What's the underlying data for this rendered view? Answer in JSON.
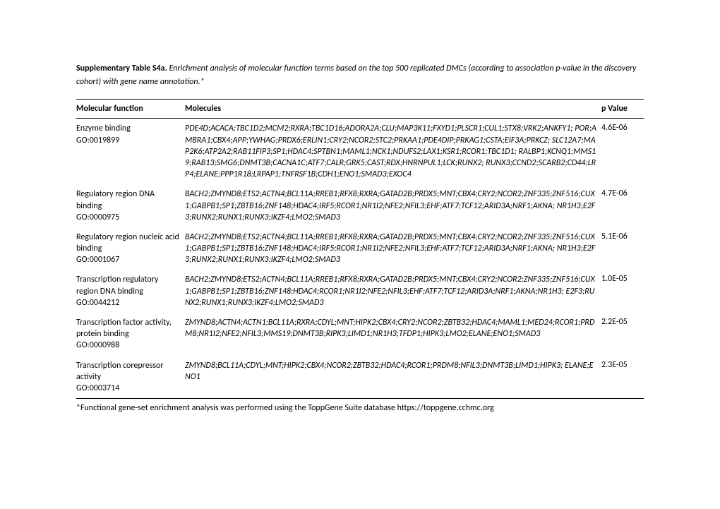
{
  "caption": {
    "title_bold": "Supplementary Table S4a.",
    "title_italic": "Enrichment analysis of molecular function terms based on the top 500 replicated DMCs (according to association p-value in the discovery cohort) with gene name annotation.*"
  },
  "columns": {
    "func": "Molecular function",
    "mol": "Molecules",
    "pval": "p Value"
  },
  "rows": [
    {
      "name": "Enzyme binding",
      "go": "GO:0019899",
      "molecules": "PDE4D;ACACA;TBC1D2;MCM2;RXRA;TBC1D16;ADORA2A;CLU;MAP3K11;FXYD1;PLSCR1;CUL1;STX8;VRK2;ANKFY1; POR;AMBRA1;CBX4;APP;YWHAG;PRDX6;ERLIN1;CRY2;NCOR2;STC2;PRKAA1;PDE4DIP;PRKAG1;CSTA;EIF3A;PRKCZ; SLC12A7;MAP2K6;ATP2A2;RAB11FIP3;SP1;HDAC4;SPTBN1;MAML1;NCK1;NDUFS2;LAX1;KSR1;RCOR1;TBC1D1; RALBP1;KCNQ1;MMS19;RAB13;SMG6;DNMT3B;CACNA1C;ATF7;CALR;GRK5;CAST;RDX;HNRNPUL1;LCK;RUNX2; RUNX3;CCND2;SCARB2;CD44;LRP4;ELANE;PPP1R18;LRPAP1;TNFRSF1B;CDH1;ENO1;SMAD3;EXOC4",
      "pvalue": "4.6E-06"
    },
    {
      "name": "Regulatory region DNA binding",
      "go": "GO:0000975",
      "molecules": "BACH2;ZMYND8;ETS2;ACTN4;BCL11A;RREB1;RFX8;RXRA;GATAD2B;PRDX5;MNT;CBX4;CRY2;NCOR2;ZNF335;ZNF516;CUX1;GABPB1;SP1;ZBTB16;ZNF148;HDAC4;IRF5;RCOR1;NR1I2;NFE2;NFIL3;EHF;ATF7;TCF12;ARID3A;NRF1;AKNA; NR1H3;E2F3;RUNX2;RUNX1;RUNX3;IKZF4;LMO2;SMAD3",
      "pvalue": "4.7E-06"
    },
    {
      "name": "Regulatory region nucleic acid binding",
      "go": "GO:0001067",
      "molecules": "BACH2;ZMYND8;ETS2;ACTN4;BCL11A;RREB1;RFX8;RXRA;GATAD2B;PRDX5;MNT;CBX4;CRY2;NCOR2;ZNF335;ZNF516;CUX1;GABPB1;SP1;ZBTB16;ZNF148;HDAC4;IRF5;RCOR1;NR1I2;NFE2;NFIL3;EHF;ATF7;TCF12;ARID3A;NRF1;AKNA; NR1H3;E2F3;RUNX2;RUNX1;RUNX3;IKZF4;LMO2;SMAD3",
      "pvalue": "5.1E-06"
    },
    {
      "name": "Transcription regulatory region DNA binding",
      "go": "GO:0044212",
      "molecules": "BACH2;ZMYND8;ETS2;ACTN4;BCL11A;RREB1;RFX8;RXRA;GATAD2B;PRDX5;MNT;CBX4;CRY2;NCOR2;ZNF335;ZNF516;CUX1;GABPB1;SP1;ZBTB16;ZNF148;HDAC4;RCOR1;NR1I2;NFE2;NFIL3;EHF;ATF7;TCF12;ARID3A;NRF1;AKNA;NR1H3; E2F3;RUNX2;RUNX1;RUNX3;IKZF4;LMO2;SMAD3",
      "pvalue": "1.0E-05"
    },
    {
      "name": "Transcription factor activity, protein binding",
      "go": "GO:0000988",
      "molecules": "ZMYND8;ACTN4;ACTN1;BCL11A;RXRA;CDYL;MNT;HIPK2;CBX4;CRY2;NCOR2;ZBTB32;HDAC4;MAML1;MED24;RCOR1;PRDM8;NR1I2;NFE2;NFIL3;MMS19;DNMT3B;RIPK3;LIMD1;NR1H3;TFDP1;HIPK3;LMO2;ELANE;ENO1;SMAD3",
      "pvalue": "2.2E-05"
    },
    {
      "name": "Transcription corepressor activity",
      "go": "GO:0003714",
      "molecules": "ZMYND8;BCL11A;CDYL;MNT;HIPK2;CBX4;NCOR2;ZBTB32;HDAC4;RCOR1;PRDM8;NFIL3;DNMT3B;LIMD1;HIPK3; ELANE;ENO1",
      "pvalue": "2.3E-05"
    }
  ],
  "footnote": "*Functional gene-set enrichment analysis was performed using the ToppGene Suite database https://toppgene.cchmc.org"
}
